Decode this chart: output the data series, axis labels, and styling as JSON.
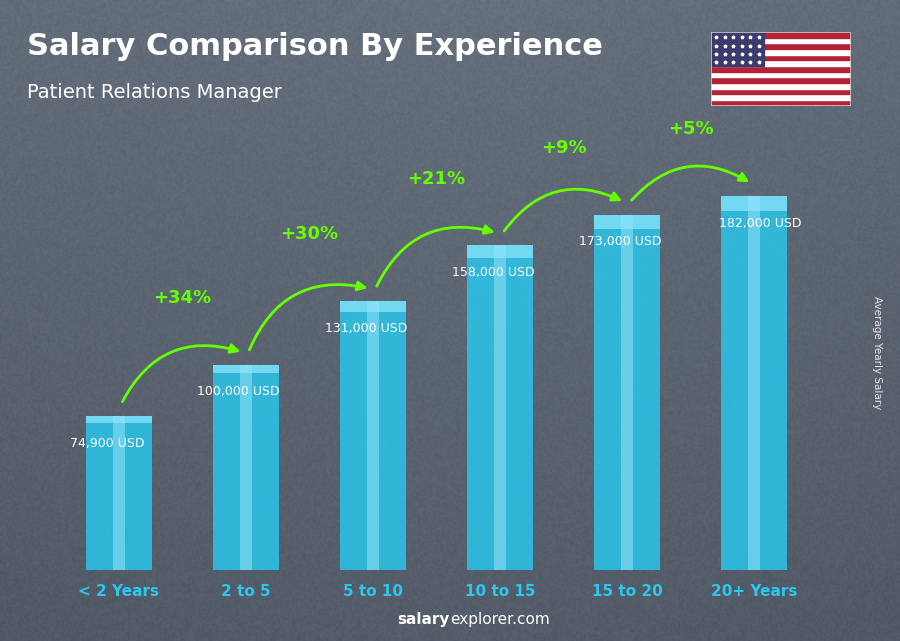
{
  "title": "Salary Comparison By Experience",
  "subtitle": "Patient Relations Manager",
  "categories": [
    "< 2 Years",
    "2 to 5",
    "5 to 10",
    "10 to 15",
    "15 to 20",
    "20+ Years"
  ],
  "values": [
    74900,
    100000,
    131000,
    158000,
    173000,
    182000
  ],
  "labels": [
    "74,900 USD",
    "100,000 USD",
    "131,000 USD",
    "158,000 USD",
    "173,000 USD",
    "182,000 USD"
  ],
  "pct_changes": [
    "+34%",
    "+30%",
    "+21%",
    "+9%",
    "+5%"
  ],
  "bar_color": "#29c9f0",
  "bar_highlight": "#5de0ff",
  "bar_edge": "#1ab0d8",
  "bg_color_top": "#8a9aaa",
  "bg_color_bot": "#6a7a8a",
  "title_color": "#ffffff",
  "subtitle_color": "#ffffff",
  "label_color": "#ffffff",
  "pct_color": "#66ff00",
  "xtick_color": "#29c9f0",
  "ylabel_text": "Average Yearly Salary",
  "ylim_max": 215000,
  "figsize": [
    9.0,
    6.41
  ],
  "dpi": 100
}
